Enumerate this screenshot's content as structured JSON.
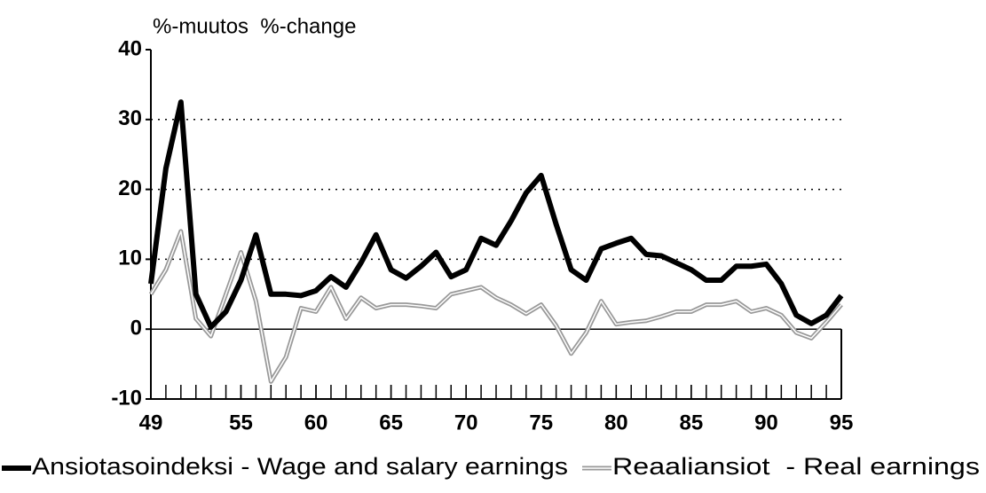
{
  "chart_data": {
    "type": "line",
    "y_label": "%-muutos  %-change",
    "x": [
      49,
      50,
      51,
      52,
      53,
      54,
      55,
      56,
      57,
      58,
      59,
      60,
      61,
      62,
      63,
      64,
      65,
      66,
      67,
      68,
      69,
      70,
      71,
      72,
      73,
      74,
      75,
      76,
      77,
      78,
      79,
      80,
      81,
      82,
      83,
      84,
      85,
      86,
      87,
      88,
      89,
      90,
      91,
      92,
      93,
      94,
      95
    ],
    "series": [
      {
        "name": "Ansiotasoindeksi - Wage and salary earnings",
        "color": "#000000",
        "values": [
          6.5,
          23,
          32.5,
          5,
          0.3,
          2.5,
          7,
          13.5,
          5,
          5,
          4.8,
          5.5,
          7.5,
          6,
          9.5,
          13.5,
          8.5,
          7.3,
          9,
          11,
          7.5,
          8.5,
          13,
          12,
          15.5,
          19.5,
          22,
          15,
          8.5,
          7,
          11.5,
          12.3,
          13,
          10.7,
          10.5,
          9.5,
          8.5,
          7,
          7,
          9,
          9,
          9.3,
          6.5,
          2,
          0.8,
          2,
          4.8
        ]
      },
      {
        "name": "Reaaliansiot  - Real earnings",
        "color": "#999999",
        "values": [
          5,
          8.5,
          14,
          1.5,
          -1,
          5,
          11,
          4,
          -7.5,
          -4,
          3,
          2.5,
          6,
          1.5,
          4.5,
          3,
          3.5,
          3.5,
          3.3,
          3,
          5,
          5.5,
          6,
          4.5,
          3.5,
          2.2,
          3.5,
          0.5,
          -3.5,
          -0.5,
          4,
          0.7,
          1,
          1.2,
          1.8,
          2.5,
          2.5,
          3.5,
          3.5,
          4,
          2.5,
          3,
          2,
          -0.5,
          -1.3,
          1,
          3.5
        ]
      }
    ],
    "xlim": [
      49,
      95
    ],
    "xticks": [
      49,
      55,
      60,
      65,
      70,
      75,
      80,
      85,
      90,
      95
    ],
    "ylim": [
      -10,
      40
    ],
    "yticks": [
      -10,
      0,
      10,
      20,
      30,
      40
    ],
    "grid": true
  }
}
